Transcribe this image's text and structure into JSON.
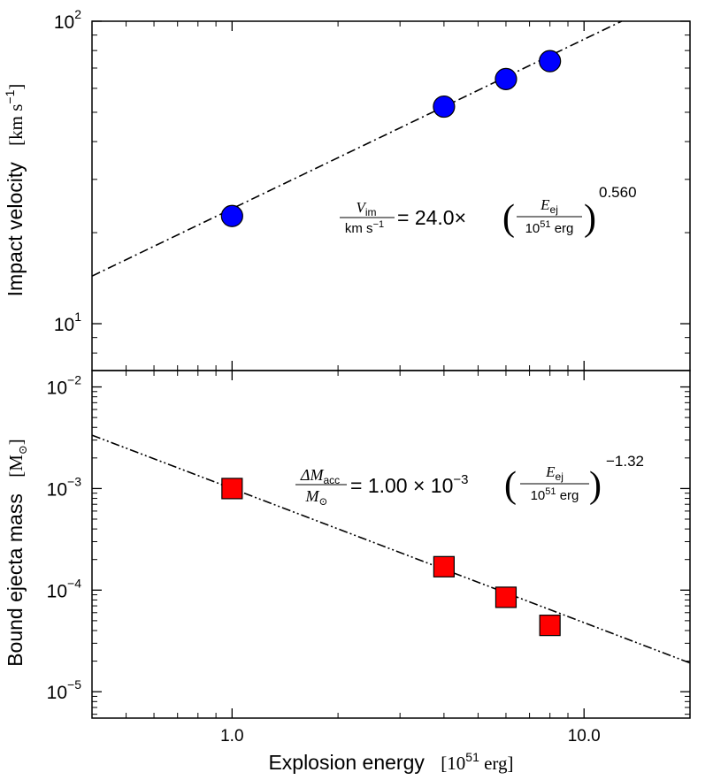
{
  "chart_data": [
    {
      "type": "scatter",
      "panel": "top",
      "xscale": "log",
      "yscale": "log",
      "xlim": [
        0.4,
        20
      ],
      "ylim": [
        7,
        100
      ],
      "ylabel_main": "Impact  velocity",
      "ylabel_unit": "[km s",
      "ylabel_unit_sup": "−1",
      "ylabel_unit_close": "]",
      "ytick_labels": [
        {
          "value": 10,
          "base": "10",
          "exp": "1"
        },
        {
          "value": 100,
          "base": "10",
          "exp": "2"
        }
      ],
      "series": [
        {
          "name": "Impact velocity",
          "marker": "circle",
          "color": "#0000ff",
          "x": [
            1.0,
            4.0,
            6.0,
            8.0
          ],
          "y": [
            22.7,
            52.2,
            64.4,
            73.8
          ]
        }
      ],
      "fit": {
        "coefficient": 24.0,
        "exponent": 0.56,
        "style": "dash-dot",
        "label_num": "V",
        "label_num_sub": "im",
        "label_den": "km s",
        "label_den_sup": "−1",
        "label_eq": "= 24.0×",
        "label_frac_num": "E",
        "label_frac_num_sub": "ej",
        "label_frac_den": "10",
        "label_frac_den_sup": "51",
        "label_frac_den_unit": " erg",
        "label_power": "0.560"
      }
    },
    {
      "type": "scatter",
      "panel": "bottom",
      "xscale": "log",
      "yscale": "log",
      "xlim": [
        0.4,
        20
      ],
      "ylim": [
        5.5e-06,
        0.0145
      ],
      "ylabel_main": "Bound  ejecta  mass",
      "ylabel_unit": "[M",
      "ylabel_unit_sub": "⊙",
      "ylabel_unit_close": "]",
      "xlabel_main": "Explosion  energy",
      "xlabel_unit": "[10",
      "xlabel_unit_sup": "51",
      "xlabel_unit_rest": " erg]",
      "xtick_labels": [
        {
          "value": 1,
          "label": "1.0"
        },
        {
          "value": 10,
          "label": "10.0"
        }
      ],
      "ytick_labels": [
        {
          "value": 1e-05,
          "base": "10",
          "exp": "−5"
        },
        {
          "value": 0.0001,
          "base": "10",
          "exp": "−4"
        },
        {
          "value": 0.001,
          "base": "10",
          "exp": "−3"
        },
        {
          "value": 0.01,
          "base": "10",
          "exp": "−2"
        }
      ],
      "series": [
        {
          "name": "Bound ejecta mass",
          "marker": "square",
          "color": "#ff0000",
          "x": [
            1.0,
            4.0,
            6.0,
            8.0
          ],
          "y": [
            0.001,
            0.00017,
            8.5e-05,
            4.5e-05
          ]
        }
      ],
      "fit": {
        "coefficient": 0.001,
        "exponent": -1.32,
        "style": "dash-dot-dot",
        "label_num": "ΔM",
        "label_num_sub": "acc",
        "label_den": "M",
        "label_den_sub": "⊙",
        "label_eq": "= 1.00 × 10",
        "label_eq_sup": "−3",
        "label_frac_num": "E",
        "label_frac_num_sub": "ej",
        "label_frac_den": "10",
        "label_frac_den_sup": "51",
        "label_frac_den_unit": " erg",
        "label_power": "−1.32"
      }
    }
  ]
}
